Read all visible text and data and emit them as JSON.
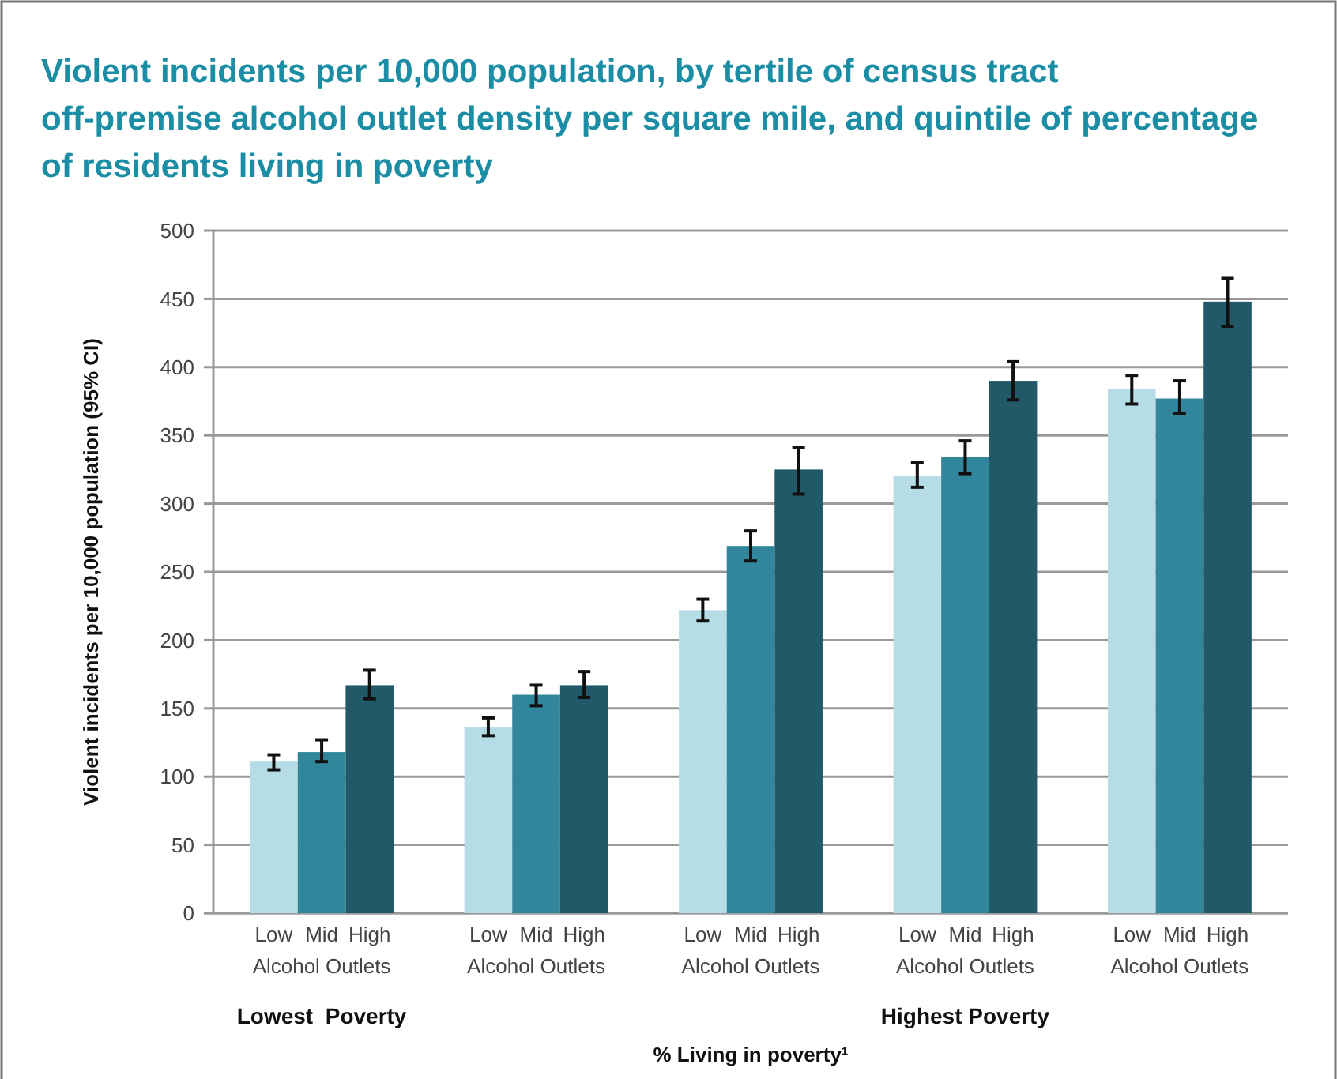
{
  "chart_data": {
    "type": "bar",
    "title": "Violent incidents per 10,000 population, by tertile of census tract off-premise alcohol outlet density per square mile, and quintile of percentage of residents living in poverty",
    "xlabel": "% Living in poverty¹",
    "ylabel": "Violent incidents per 10,000 population (95% CI)",
    "categories": [
      "Alcohol Outlets",
      "Alcohol Outlets",
      "Alcohol Outlets",
      "Alcohol Outlets",
      "Alcohol Outlets"
    ],
    "series": [
      {
        "name": "Low",
        "color": "#b6dde6",
        "values": [
          111,
          136,
          222,
          320,
          384
        ],
        "errors": [
          [
            105,
            116
          ],
          [
            130,
            143
          ],
          [
            214,
            230
          ],
          [
            312,
            330
          ],
          [
            373,
            394
          ]
        ]
      },
      {
        "name": "Mid",
        "color": "#31869b",
        "values": [
          118,
          160,
          269,
          334,
          377
        ],
        "errors": [
          [
            111,
            127
          ],
          [
            152,
            167
          ],
          [
            258,
            280
          ],
          [
            322,
            346
          ],
          [
            366,
            390
          ]
        ]
      },
      {
        "name": "High",
        "color": "#215968",
        "values": [
          167,
          167,
          325,
          390,
          448
        ],
        "errors": [
          [
            157,
            178
          ],
          [
            158,
            177
          ],
          [
            307,
            341
          ],
          [
            376,
            404
          ],
          [
            430,
            465
          ]
        ]
      }
    ],
    "ylim": [
      0,
      500
    ],
    "yticks": [
      0,
      50,
      100,
      150,
      200,
      250,
      300,
      350,
      400,
      450,
      500
    ],
    "grid": "y",
    "annotations": [
      "Lowest  Poverty",
      "Highest Poverty"
    ]
  }
}
